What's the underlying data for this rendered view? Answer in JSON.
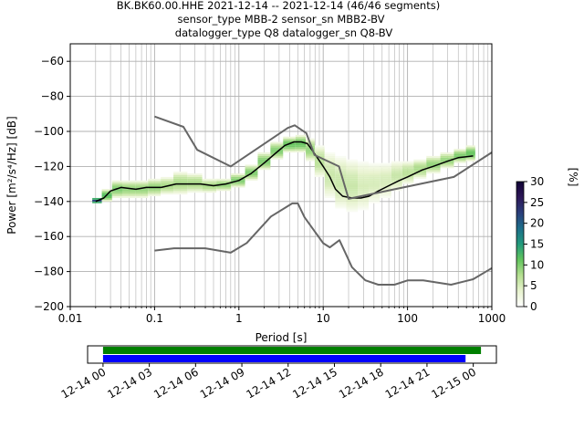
{
  "title_lines": [
    "BK.BK60.00.HHE   2021-12-14 -- 2021-12-14  (46/46 segments)",
    "sensor_type MBB-2 sensor_sn MBB2-BV",
    "datalogger_type Q8 datalogger_sn Q8-BV"
  ],
  "chart_data": {
    "type": "heatmap",
    "xlabel": "Period [s]",
    "ylabel": "Power [m²/s⁴/Hz] [dB]",
    "xscale": "log",
    "xlim": [
      0.01,
      1000
    ],
    "ylim": [
      -200,
      -50
    ],
    "x_ticks": [
      {
        "value": 0.01,
        "label": "0.01"
      },
      {
        "value": 0.1,
        "label": "0.1"
      },
      {
        "value": 1,
        "label": "1"
      },
      {
        "value": 10,
        "label": "10"
      },
      {
        "value": 100,
        "label": "100"
      },
      {
        "value": 1000,
        "label": "1000"
      }
    ],
    "y_ticks": [
      {
        "value": -60,
        "label": "−60"
      },
      {
        "value": -80,
        "label": "−80"
      },
      {
        "value": -100,
        "label": "−100"
      },
      {
        "value": -120,
        "label": "−120"
      },
      {
        "value": -140,
        "label": "−140"
      },
      {
        "value": -160,
        "label": "−160"
      },
      {
        "value": -180,
        "label": "−180"
      },
      {
        "value": -200,
        "label": "−200"
      }
    ],
    "grid": true,
    "colorbar": {
      "label": "[%]",
      "range": [
        0,
        30
      ],
      "ticks": [
        {
          "value": 0,
          "label": "0"
        },
        {
          "value": 5,
          "label": "5"
        },
        {
          "value": 10,
          "label": "10"
        },
        {
          "value": 15,
          "label": "15"
        },
        {
          "value": 20,
          "label": "20"
        },
        {
          "value": 25,
          "label": "25"
        },
        {
          "value": 30,
          "label": "30"
        }
      ],
      "colors": [
        "#ffffff",
        "#e8f3cf",
        "#b5df91",
        "#62c45d",
        "#229a7c",
        "#1d6e8a",
        "#2a3e7a",
        "#2d1757",
        "#100235"
      ]
    },
    "series": [
      {
        "kind": "mean",
        "color": "#000000",
        "points": [
          [
            0.02,
            -140
          ],
          [
            0.025,
            -138
          ],
          [
            0.03,
            -134
          ],
          [
            0.04,
            -132
          ],
          [
            0.06,
            -133
          ],
          [
            0.08,
            -132
          ],
          [
            0.12,
            -132
          ],
          [
            0.18,
            -130
          ],
          [
            0.25,
            -130
          ],
          [
            0.35,
            -130
          ],
          [
            0.5,
            -131
          ],
          [
            0.7,
            -130
          ],
          [
            1,
            -128
          ],
          [
            1.4,
            -124
          ],
          [
            2,
            -118
          ],
          [
            2.8,
            -112
          ],
          [
            3.5,
            -108
          ],
          [
            4.5,
            -106
          ],
          [
            5.5,
            -106
          ],
          [
            6.5,
            -107
          ],
          [
            8,
            -113
          ],
          [
            10,
            -120
          ],
          [
            12,
            -126
          ],
          [
            14,
            -133
          ],
          [
            17,
            -137
          ],
          [
            22,
            -138
          ],
          [
            28,
            -138
          ],
          [
            35,
            -137
          ],
          [
            45,
            -134
          ],
          [
            60,
            -131
          ],
          [
            80,
            -128
          ],
          [
            100,
            -126
          ],
          [
            150,
            -122
          ],
          [
            200,
            -120
          ],
          [
            300,
            -117
          ],
          [
            400,
            -115
          ],
          [
            600,
            -114
          ]
        ]
      },
      {
        "kind": "noise-model-high",
        "color": "#666666",
        "points": [
          [
            0.1,
            -91.5
          ],
          [
            0.22,
            -97.4
          ],
          [
            0.32,
            -110.5
          ],
          [
            0.8,
            -120
          ],
          [
            3.8,
            -98
          ],
          [
            4.6,
            -96.5
          ],
          [
            6.3,
            -101
          ],
          [
            7.9,
            -113.5
          ],
          [
            15.4,
            -120
          ],
          [
            20,
            -138.5
          ],
          [
            354.8,
            -126
          ],
          [
            1000,
            -112
          ]
        ]
      },
      {
        "kind": "noise-model-low",
        "color": "#666666",
        "points": [
          [
            0.1,
            -168
          ],
          [
            0.17,
            -166.7
          ],
          [
            0.4,
            -166.7
          ],
          [
            0.8,
            -169.2
          ],
          [
            1.24,
            -163.7
          ],
          [
            2.4,
            -148.6
          ],
          [
            4.3,
            -141.1
          ],
          [
            5,
            -141.1
          ],
          [
            6,
            -149
          ],
          [
            10,
            -163.8
          ],
          [
            12,
            -166.2
          ],
          [
            15.6,
            -162.1
          ],
          [
            21.9,
            -177.5
          ],
          [
            31.6,
            -185
          ],
          [
            45,
            -187.5
          ],
          [
            70,
            -187.5
          ],
          [
            101,
            -185
          ],
          [
            154,
            -185
          ],
          [
            328,
            -187.5
          ],
          [
            600,
            -184.4
          ],
          [
            1000,
            -178
          ]
        ]
      }
    ],
    "density_rows": [
      {
        "period": 0.02,
        "db": [
          -141,
          -138
        ],
        "level": 22
      },
      {
        "period": 0.028,
        "db": [
          -140,
          -133
        ],
        "level": 12
      },
      {
        "period": 0.035,
        "db": [
          -138,
          -128
        ],
        "level": 10
      },
      {
        "period": 0.05,
        "db": [
          -138,
          -128
        ],
        "level": 9
      },
      {
        "period": 0.07,
        "db": [
          -138,
          -128
        ],
        "level": 9
      },
      {
        "period": 0.1,
        "db": [
          -137,
          -127
        ],
        "level": 9
      },
      {
        "period": 0.14,
        "db": [
          -136,
          -126
        ],
        "level": 8
      },
      {
        "period": 0.2,
        "db": [
          -136,
          -123
        ],
        "level": 8
      },
      {
        "period": 0.3,
        "db": [
          -135,
          -124
        ],
        "level": 8
      },
      {
        "period": 0.45,
        "db": [
          -135,
          -127
        ],
        "level": 8
      },
      {
        "period": 0.65,
        "db": [
          -134,
          -127
        ],
        "level": 9
      },
      {
        "period": 1.0,
        "db": [
          -132,
          -124
        ],
        "level": 10
      },
      {
        "period": 1.4,
        "db": [
          -128,
          -119
        ],
        "level": 10
      },
      {
        "period": 2.0,
        "db": [
          -122,
          -112
        ],
        "level": 10
      },
      {
        "period": 2.8,
        "db": [
          -116,
          -106
        ],
        "level": 10
      },
      {
        "period": 4.0,
        "db": [
          -112,
          -103
        ],
        "level": 11
      },
      {
        "period": 5.5,
        "db": [
          -112,
          -102
        ],
        "level": 11
      },
      {
        "period": 7.0,
        "db": [
          -117,
          -104
        ],
        "level": 9
      },
      {
        "period": 9.0,
        "db": [
          -126,
          -108
        ],
        "level": 7
      },
      {
        "period": 12,
        "db": [
          -138,
          -112
        ],
        "level": 6
      },
      {
        "period": 16,
        "db": [
          -144,
          -114
        ],
        "level": 6
      },
      {
        "period": 22,
        "db": [
          -146,
          -116
        ],
        "level": 6
      },
      {
        "period": 30,
        "db": [
          -145,
          -117
        ],
        "level": 5
      },
      {
        "period": 40,
        "db": [
          -141,
          -118
        ],
        "level": 5
      },
      {
        "period": 55,
        "db": [
          -138,
          -118
        ],
        "level": 5
      },
      {
        "period": 75,
        "db": [
          -134,
          -117
        ],
        "level": 6
      },
      {
        "period": 100,
        "db": [
          -130,
          -117
        ],
        "level": 7
      },
      {
        "period": 140,
        "db": [
          -127,
          -116
        ],
        "level": 8
      },
      {
        "period": 200,
        "db": [
          -124,
          -114
        ],
        "level": 9
      },
      {
        "period": 300,
        "db": [
          -121,
          -112
        ],
        "level": 9
      },
      {
        "period": 420,
        "db": [
          -118,
          -110
        ],
        "level": 10
      },
      {
        "period": 580,
        "db": [
          -117,
          -108
        ],
        "level": 11
      }
    ]
  },
  "timeline": {
    "start_hour": -1,
    "end_hour": 25.5,
    "ticks": [
      {
        "hour": 0,
        "label": "12-14 00"
      },
      {
        "hour": 3,
        "label": "12-14 03"
      },
      {
        "hour": 6,
        "label": "12-14 06"
      },
      {
        "hour": 9,
        "label": "12-14 09"
      },
      {
        "hour": 12,
        "label": "12-14 12"
      },
      {
        "hour": 15,
        "label": "12-14 15"
      },
      {
        "hour": 18,
        "label": "12-14 18"
      },
      {
        "hour": 21,
        "label": "12-14 21"
      },
      {
        "hour": 24,
        "label": "12-15 00"
      }
    ],
    "bars": [
      {
        "name": "data",
        "color": "#008000",
        "start_hour": 0,
        "end_hour": 24.5
      },
      {
        "name": "psd",
        "color": "#0000ff",
        "start_hour": 0,
        "end_hour": 23.5
      }
    ]
  }
}
